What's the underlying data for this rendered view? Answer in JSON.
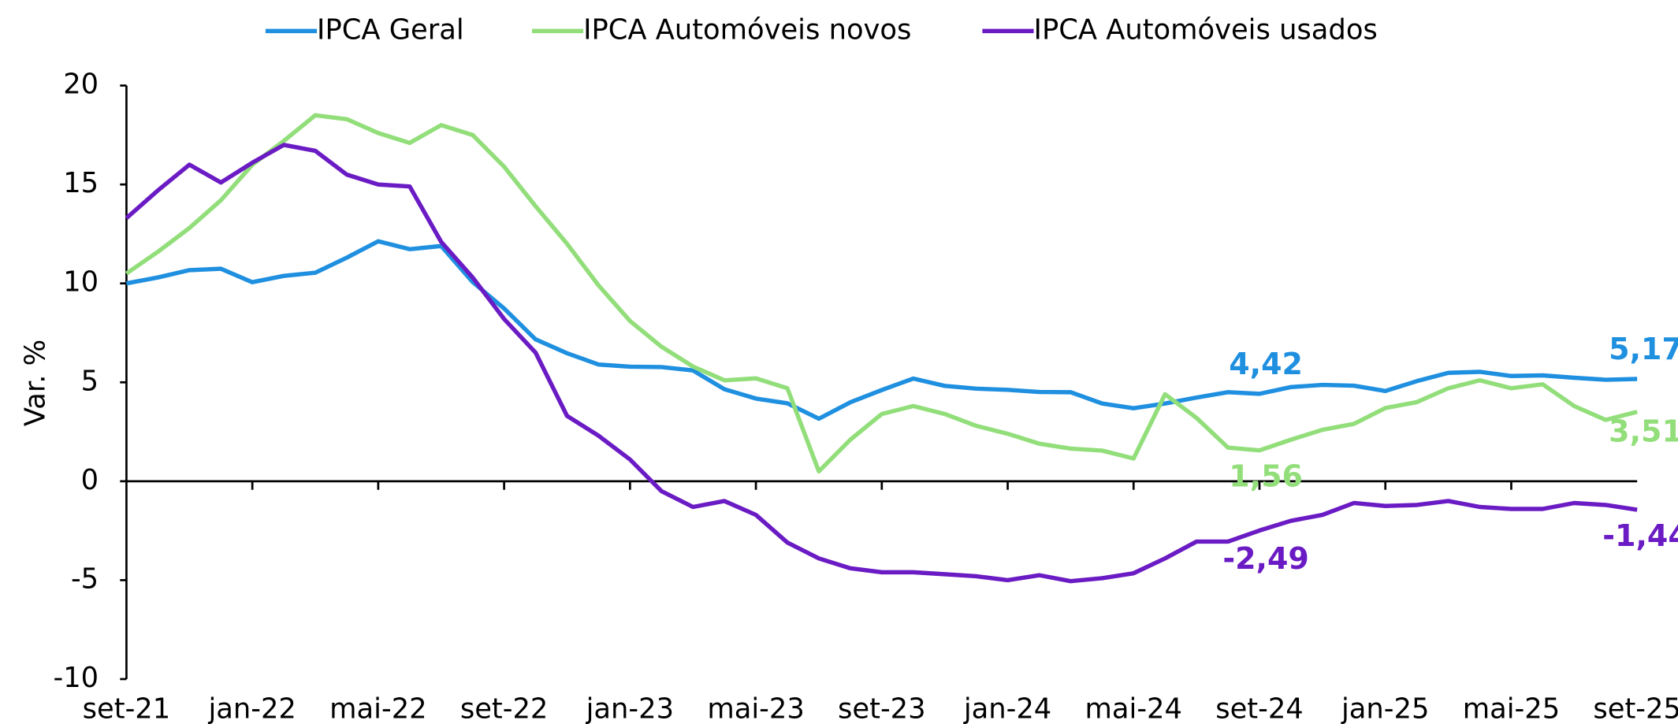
{
  "chart_data": {
    "type": "line",
    "y_label": "Var. %",
    "categories": [
      "set-21",
      null,
      null,
      null,
      "jan-22",
      null,
      null,
      null,
      "mai-22",
      null,
      null,
      null,
      "set-22",
      null,
      null,
      null,
      "jan-23",
      null,
      null,
      null,
      "mai-23",
      null,
      null,
      null,
      "set-23",
      null,
      null,
      null,
      "jan-24",
      null,
      null,
      null,
      "mai-24",
      null,
      null,
      null,
      "set-24",
      null,
      null,
      null,
      "jan-25",
      null,
      null,
      null,
      "mai-25",
      null,
      null,
      null,
      "set-25"
    ],
    "ylim": [
      -10,
      20
    ],
    "yticks": [
      -10,
      -5,
      0,
      5,
      10,
      15,
      20
    ],
    "legend": "top",
    "series": [
      {
        "name": "IPCA Geral",
        "color": "#1f8fe0",
        "values": [
          10.0,
          10.3,
          10.67,
          10.74,
          10.06,
          10.38,
          10.54,
          11.3,
          12.13,
          11.73,
          11.89,
          10.07,
          8.73,
          7.17,
          6.47,
          5.9,
          5.79,
          5.77,
          5.6,
          4.65,
          4.18,
          3.94,
          3.16,
          3.99,
          4.61,
          5.19,
          4.82,
          4.68,
          4.62,
          4.51,
          4.5,
          3.93,
          3.69,
          3.93,
          4.23,
          4.5,
          4.42,
          4.76,
          4.87,
          4.83,
          4.56,
          5.06,
          5.48,
          5.53,
          5.32,
          5.35,
          5.23,
          5.13,
          5.17
        ],
        "value_labels": [
          null,
          null,
          null,
          null,
          null,
          null,
          null,
          null,
          null,
          null,
          null,
          null,
          null,
          null,
          null,
          null,
          null,
          null,
          null,
          null,
          null,
          null,
          null,
          null,
          null,
          null,
          null,
          null,
          null,
          null,
          null,
          null,
          null,
          null,
          null,
          null,
          "4,42",
          null,
          null,
          null,
          null,
          null,
          null,
          null,
          null,
          null,
          null,
          null,
          "5,17"
        ]
      },
      {
        "name": "IPCA Automóveis novos",
        "color": "#92de7a",
        "values": [
          10.5,
          11.6,
          12.8,
          14.2,
          16.0,
          17.2,
          18.5,
          18.3,
          17.6,
          17.1,
          18.0,
          17.5,
          15.9,
          13.9,
          12.0,
          9.9,
          8.1,
          6.8,
          5.8,
          5.1,
          5.2,
          4.7,
          0.5,
          2.1,
          3.4,
          3.8,
          3.4,
          2.8,
          2.4,
          1.9,
          1.65,
          1.55,
          1.15,
          4.4,
          3.2,
          1.7,
          1.56,
          2.1,
          2.6,
          2.9,
          3.7,
          4.0,
          4.7,
          5.1,
          4.7,
          4.9,
          3.8,
          3.1,
          3.51
        ],
        "value_labels": [
          null,
          null,
          null,
          null,
          null,
          null,
          null,
          null,
          null,
          null,
          null,
          null,
          null,
          null,
          null,
          null,
          null,
          null,
          null,
          null,
          null,
          null,
          null,
          null,
          null,
          null,
          null,
          null,
          null,
          null,
          null,
          null,
          null,
          null,
          null,
          null,
          "1,56",
          null,
          null,
          null,
          null,
          null,
          null,
          null,
          null,
          null,
          null,
          null,
          "3,51"
        ]
      },
      {
        "name": "IPCA Automóveis usados",
        "color": "#6a1bc4",
        "values": [
          13.3,
          14.7,
          16.0,
          15.1,
          16.1,
          17.0,
          16.7,
          15.5,
          15.0,
          14.9,
          12.1,
          10.3,
          8.2,
          6.5,
          3.3,
          2.3,
          1.1,
          -0.5,
          -1.3,
          -1.0,
          -1.7,
          -3.1,
          -3.9,
          -4.4,
          -4.6,
          -4.6,
          -4.7,
          -4.8,
          -5.0,
          -4.75,
          -5.05,
          -4.9,
          -4.65,
          -3.9,
          -3.05,
          -3.05,
          -2.49,
          -2.0,
          -1.7,
          -1.1,
          -1.25,
          -1.2,
          -1.0,
          -1.3,
          -1.4,
          -1.4,
          -1.1,
          -1.2,
          -1.44
        ],
        "value_labels": [
          null,
          null,
          null,
          null,
          null,
          null,
          null,
          null,
          null,
          null,
          null,
          null,
          null,
          null,
          null,
          null,
          null,
          null,
          null,
          null,
          null,
          null,
          null,
          null,
          null,
          null,
          null,
          null,
          null,
          null,
          null,
          null,
          null,
          null,
          null,
          null,
          "-2,49",
          null,
          null,
          null,
          null,
          null,
          null,
          null,
          null,
          null,
          null,
          null,
          "-1,44"
        ]
      }
    ]
  }
}
